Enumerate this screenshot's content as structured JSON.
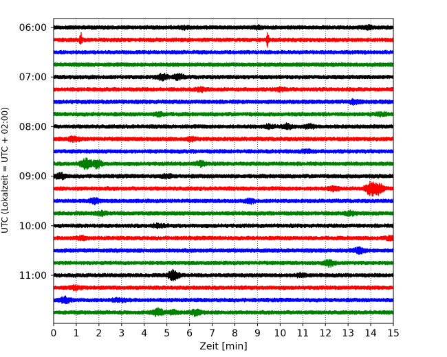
{
  "chart_data": {
    "type": "line",
    "title": "",
    "xlabel": "Zeit  [min]",
    "ylabel": "UTC (Lokalzeit = UTC + 02:00)",
    "xlim": [
      0,
      15
    ],
    "xticks": [
      0,
      1,
      2,
      3,
      4,
      5,
      6,
      7,
      8,
      9,
      10,
      11,
      12,
      13,
      14,
      15
    ],
    "grid": "vertical dotted",
    "yticks": [
      "06:00",
      "07:00",
      "08:00",
      "09:00",
      "10:00",
      "11:00"
    ],
    "trace_interval_minutes": 15,
    "colors": [
      "#000000",
      "#ff0000",
      "#0000ff",
      "#008000"
    ],
    "traces": [
      {
        "start": "06:00",
        "color": "#000000",
        "events": [
          {
            "t": 5.8,
            "amp": 0.8
          },
          {
            "t": 9.0,
            "amp": 0.7
          },
          {
            "t": 13.9,
            "amp": 0.8
          }
        ]
      },
      {
        "start": "06:15",
        "color": "#ff0000",
        "events": [
          {
            "t": 1.2,
            "amp": 4.2,
            "width": 0.05
          },
          {
            "t": 9.45,
            "amp": 4.2,
            "width": 0.05
          }
        ]
      },
      {
        "start": "06:30",
        "color": "#0000ff",
        "events": []
      },
      {
        "start": "06:45",
        "color": "#008000",
        "events": []
      },
      {
        "start": "07:00",
        "color": "#000000",
        "events": [
          {
            "t": 4.8,
            "amp": 1.6
          },
          {
            "t": 5.5,
            "amp": 1.4
          }
        ]
      },
      {
        "start": "07:15",
        "color": "#ff0000",
        "events": [
          {
            "t": 6.5,
            "amp": 1.0
          },
          {
            "t": 10.0,
            "amp": 0.8
          }
        ]
      },
      {
        "start": "07:30",
        "color": "#0000ff",
        "events": [
          {
            "t": 13.3,
            "amp": 1.2
          }
        ]
      },
      {
        "start": "07:45",
        "color": "#008000",
        "events": [
          {
            "t": 4.7,
            "amp": 1.0
          },
          {
            "t": 14.5,
            "amp": 0.9
          }
        ]
      },
      {
        "start": "08:00",
        "color": "#000000",
        "events": [
          {
            "t": 9.5,
            "amp": 1.0
          },
          {
            "t": 10.3,
            "amp": 1.3
          },
          {
            "t": 11.3,
            "amp": 1.0
          }
        ]
      },
      {
        "start": "08:15",
        "color": "#ff0000",
        "events": [
          {
            "t": 0.9,
            "amp": 1.2
          },
          {
            "t": 6.1,
            "amp": 0.9
          }
        ]
      },
      {
        "start": "08:30",
        "color": "#0000ff",
        "events": [
          {
            "t": 11.2,
            "amp": 0.8
          }
        ]
      },
      {
        "start": "08:45",
        "color": "#008000",
        "events": [
          {
            "t": 1.4,
            "amp": 2.8
          },
          {
            "t": 1.9,
            "amp": 2.2
          },
          {
            "t": 6.5,
            "amp": 1.3
          }
        ]
      },
      {
        "start": "09:00",
        "color": "#000000",
        "events": [
          {
            "t": 0.3,
            "amp": 1.6
          },
          {
            "t": 5.0,
            "amp": 1.0
          }
        ]
      },
      {
        "start": "09:15",
        "color": "#ff0000",
        "events": [
          {
            "t": 12.4,
            "amp": 1.2
          },
          {
            "t": 14.0,
            "amp": 3.8
          },
          {
            "t": 14.35,
            "amp": 3.0
          }
        ]
      },
      {
        "start": "09:30",
        "color": "#0000ff",
        "events": [
          {
            "t": 1.8,
            "amp": 1.4
          },
          {
            "t": 8.7,
            "amp": 1.0
          }
        ]
      },
      {
        "start": "09:45",
        "color": "#008000",
        "events": [
          {
            "t": 2.1,
            "amp": 1.1
          },
          {
            "t": 13.1,
            "amp": 1.0
          }
        ]
      },
      {
        "start": "10:00",
        "color": "#000000",
        "events": [
          {
            "t": 4.6,
            "amp": 0.9
          }
        ]
      },
      {
        "start": "10:15",
        "color": "#ff0000",
        "events": [
          {
            "t": 1.2,
            "amp": 1.0
          },
          {
            "t": 14.9,
            "amp": 1.1
          }
        ]
      },
      {
        "start": "10:30",
        "color": "#0000ff",
        "events": [
          {
            "t": 13.5,
            "amp": 1.6
          }
        ]
      },
      {
        "start": "10:45",
        "color": "#008000",
        "events": [
          {
            "t": 12.2,
            "amp": 1.7
          }
        ]
      },
      {
        "start": "11:00",
        "color": "#000000",
        "events": [
          {
            "t": 5.3,
            "amp": 3.0
          },
          {
            "t": 10.9,
            "amp": 0.9
          }
        ]
      },
      {
        "start": "11:15",
        "color": "#ff0000",
        "events": [
          {
            "t": 0.95,
            "amp": 1.0
          }
        ]
      },
      {
        "start": "11:30",
        "color": "#0000ff",
        "events": [
          {
            "t": 0.5,
            "amp": 1.6
          },
          {
            "t": 2.9,
            "amp": 1.0
          }
        ]
      },
      {
        "start": "11:45",
        "color": "#008000",
        "events": [
          {
            "t": 4.6,
            "amp": 2.1
          },
          {
            "t": 6.3,
            "amp": 1.5
          },
          {
            "t": 5.3,
            "amp": 1.1
          }
        ]
      }
    ]
  }
}
